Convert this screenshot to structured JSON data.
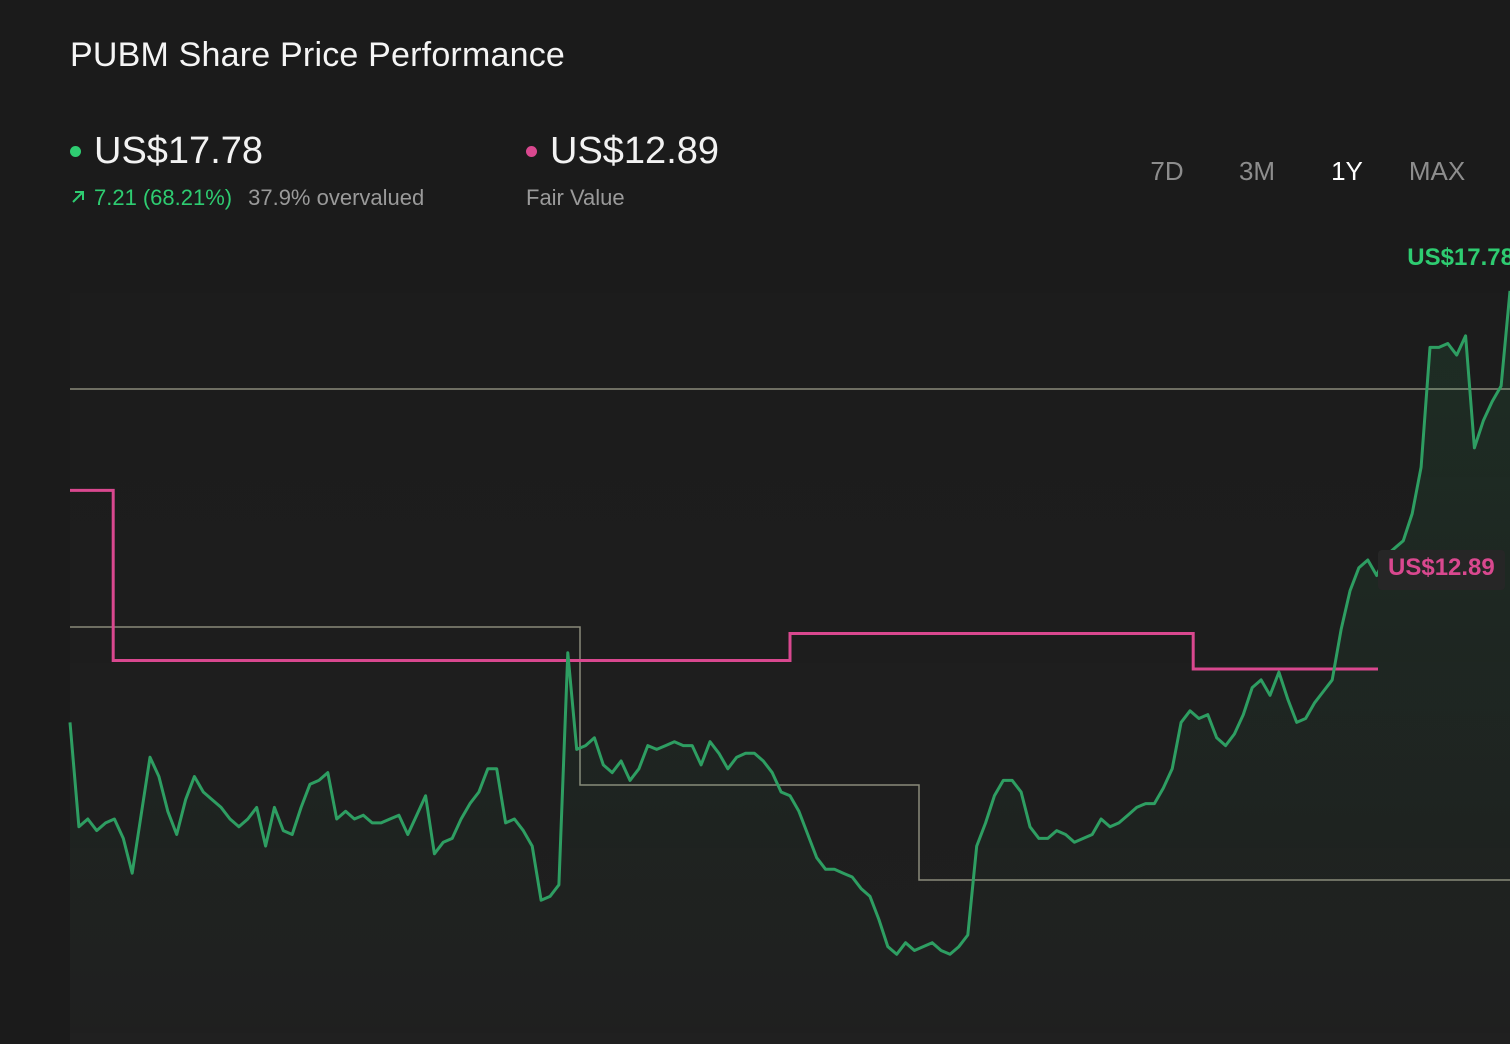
{
  "title": "PUBM Share Price Performance",
  "price": {
    "value": "US$17.78",
    "change_abs": "7.21",
    "change_pct": "(68.21%)",
    "valuation": "37.9% overvalued",
    "color": "#2ecc71"
  },
  "fair_value": {
    "value": "US$12.89",
    "label": "Fair Value",
    "color": "#d9488f"
  },
  "periods": [
    "7D",
    "3M",
    "1Y",
    "MAX"
  ],
  "active_period": "1Y",
  "end_labels": {
    "price": "US$17.78",
    "fair_value": "US$12.89"
  },
  "icons": {
    "change_arrow": "arrow-up-right-icon"
  },
  "chart_data": {
    "type": "line",
    "x_axis": "trading days over 1 year",
    "grid": false,
    "legend": "none",
    "series": [
      {
        "name": "",
        "color": "#2ecc71",
        "values": [
          12.2,
          10.85,
          10.95,
          10.8,
          10.9,
          10.95,
          10.7,
          10.25,
          11.0,
          11.75,
          11.5,
          11.05,
          10.75,
          11.2,
          11.5,
          11.3,
          11.2,
          11.1,
          10.95,
          10.85,
          10.95,
          11.1,
          10.6,
          11.1,
          10.8,
          10.75,
          11.1,
          11.4,
          11.45,
          11.55,
          10.95,
          11.05,
          10.95,
          11.0,
          10.9,
          10.9,
          10.95,
          11.0,
          10.75,
          11.0,
          11.25,
          10.5,
          10.65,
          10.7,
          10.95,
          11.15,
          11.3,
          11.6,
          11.6,
          10.9,
          10.95,
          10.8,
          10.6,
          9.9,
          9.95,
          10.1,
          13.1,
          11.85,
          11.9,
          12.0,
          11.65,
          11.55,
          11.7,
          11.45,
          11.6,
          11.9,
          11.85,
          11.9,
          11.95,
          11.9,
          11.9,
          11.65,
          11.95,
          11.8,
          11.6,
          11.75,
          11.8,
          11.8,
          11.7,
          11.55,
          11.3,
          11.25,
          11.05,
          10.75,
          10.45,
          10.3,
          10.3,
          10.25,
          10.2,
          10.05,
          9.95,
          9.65,
          9.3,
          9.2,
          9.35,
          9.25,
          9.3,
          9.35,
          9.25,
          9.2,
          9.3,
          9.45,
          10.6,
          10.9,
          11.25,
          11.45,
          11.45,
          11.3,
          10.85,
          10.7,
          10.7,
          10.8,
          10.75,
          10.65,
          10.7,
          10.75,
          10.95,
          10.85,
          10.9,
          11.0,
          11.1,
          11.15,
          11.15,
          11.35,
          11.6,
          12.2,
          12.35,
          12.25,
          12.3,
          12.0,
          11.9,
          12.05,
          12.3,
          12.65,
          12.75,
          12.55,
          12.85,
          12.5,
          12.2,
          12.25,
          12.45,
          12.6,
          12.75,
          13.4,
          13.9,
          14.2,
          14.3,
          14.1,
          14.35,
          14.45,
          14.55,
          14.9,
          15.5,
          17.05,
          17.05,
          17.1,
          16.95,
          17.2,
          15.75,
          16.1,
          16.35,
          16.55,
          17.78
        ]
      }
    ],
    "fair_value_steps": [
      {
        "from_fraction": 0.0,
        "value": 15.2
      },
      {
        "from_fraction": 0.03,
        "value": 13.0
      },
      {
        "from_fraction": 0.5,
        "value": 13.35
      },
      {
        "from_fraction": 0.78,
        "value": 12.89
      }
    ],
    "ylim": [
      8.7,
      18.4
    ]
  }
}
